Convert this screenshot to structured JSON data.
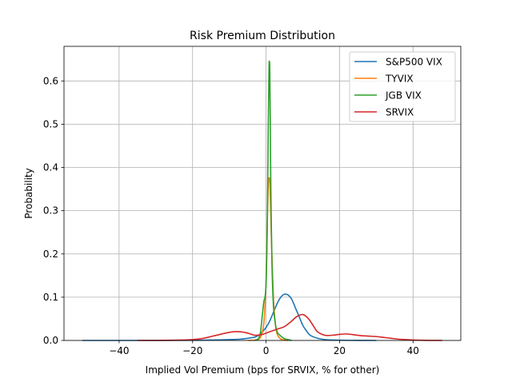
{
  "chart_data": {
    "type": "line",
    "title": "Risk Premium Distribution",
    "xlabel": "Implied Vol Premium (bps for SRVIX, % for other)",
    "ylabel": "Probability",
    "xlim": [
      -55,
      53
    ],
    "ylim": [
      0,
      0.68
    ],
    "xticks": [
      -40,
      -20,
      0,
      20,
      40
    ],
    "xtick_labels": [
      "−40",
      "−20",
      "0",
      "20",
      "40"
    ],
    "yticks": [
      0.0,
      0.1,
      0.2,
      0.3,
      0.4,
      0.5,
      0.6
    ],
    "ytick_labels": [
      "0.0",
      "0.1",
      "0.2",
      "0.3",
      "0.4",
      "0.5",
      "0.6"
    ],
    "grid": true,
    "legend_position": "top-right",
    "series": [
      {
        "name": "S&P500 VIX",
        "color": "#1f77b4",
        "x": [
          -50,
          -40,
          -30,
          -20,
          -15,
          -10,
          -7,
          -5,
          -3,
          -2,
          -1,
          0,
          1,
          2,
          3,
          4,
          5,
          6,
          7,
          8,
          9,
          10,
          11,
          12,
          14,
          16,
          18,
          20,
          25,
          30
        ],
        "y": [
          0,
          0,
          0,
          0.0003,
          0.001,
          0.002,
          0.003,
          0.005,
          0.008,
          0.012,
          0.02,
          0.03,
          0.045,
          0.065,
          0.085,
          0.1,
          0.107,
          0.105,
          0.095,
          0.075,
          0.055,
          0.035,
          0.022,
          0.012,
          0.005,
          0.002,
          0.001,
          0.0005,
          0.0001,
          0
        ]
      },
      {
        "name": "TYVIX",
        "color": "#ff7f0e",
        "x": [
          -5,
          -2,
          -1,
          -0.5,
          0,
          0.3,
          0.6,
          0.8,
          1.0,
          1.2,
          1.5,
          2.0,
          2.5,
          3,
          4,
          5,
          6
        ],
        "y": [
          0,
          0.003,
          0.02,
          0.05,
          0.14,
          0.26,
          0.36,
          0.375,
          0.37,
          0.32,
          0.22,
          0.1,
          0.04,
          0.015,
          0.003,
          0.001,
          0
        ]
      },
      {
        "name": "JGB VIX",
        "color": "#2ca02c",
        "x": [
          -3,
          -2,
          -1.5,
          -1,
          -0.6,
          -0.3,
          0,
          0.3,
          0.6,
          0.8,
          0.9,
          1.0,
          1.1,
          1.3,
          1.6,
          2.0,
          2.5,
          3,
          4,
          5,
          6,
          7
        ],
        "y": [
          0,
          0.005,
          0.02,
          0.06,
          0.09,
          0.1,
          0.13,
          0.25,
          0.5,
          0.63,
          0.645,
          0.63,
          0.55,
          0.35,
          0.18,
          0.08,
          0.04,
          0.02,
          0.01,
          0.004,
          0.002,
          0
        ]
      },
      {
        "name": "SRVIX",
        "color": "#d62728",
        "x": [
          -35,
          -25,
          -20,
          -17,
          -15,
          -13,
          -11,
          -9,
          -7,
          -5,
          -3,
          -1,
          1,
          3,
          5,
          7,
          8,
          9,
          10,
          11,
          12,
          13,
          14,
          16,
          18,
          20,
          22,
          24,
          26,
          28,
          30,
          32,
          34,
          36,
          38,
          40,
          42,
          44,
          46,
          48
        ],
        "y": [
          0,
          0.0005,
          0.002,
          0.005,
          0.009,
          0.013,
          0.017,
          0.02,
          0.02,
          0.017,
          0.012,
          0.014,
          0.02,
          0.026,
          0.032,
          0.045,
          0.053,
          0.058,
          0.06,
          0.055,
          0.045,
          0.032,
          0.02,
          0.012,
          0.012,
          0.014,
          0.015,
          0.013,
          0.011,
          0.01,
          0.009,
          0.007,
          0.005,
          0.003,
          0.002,
          0.001,
          0.0005,
          0.0002,
          0.0001,
          0
        ]
      }
    ]
  }
}
